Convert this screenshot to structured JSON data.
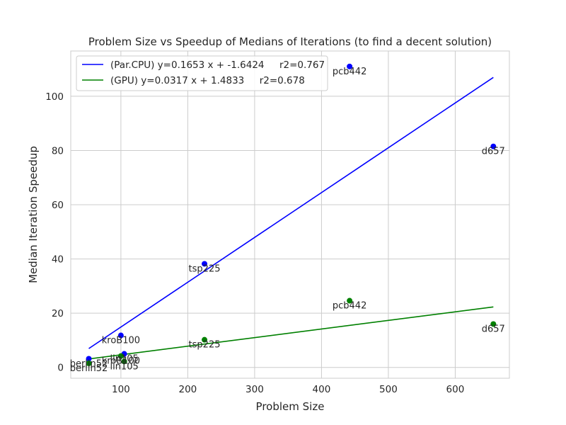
{
  "chart_data": {
    "type": "scatter",
    "title": "Problem Size vs Speedup of Medians of Iterations (to find a decent solution)",
    "xlabel": "Problem Size",
    "ylabel": "Median Iteration Speedup",
    "xlim": [
      25,
      681
    ],
    "ylim": [
      -4,
      116.7
    ],
    "xticks": [
      100,
      200,
      300,
      400,
      500,
      600
    ],
    "yticks": [
      0,
      20,
      40,
      60,
      80,
      100
    ],
    "grid": true,
    "legend_position": "upper-left",
    "series": [
      {
        "name": "(Par.CPU) y=0.1653 x + -1.6424     r2=0.767",
        "color": "#0000ff",
        "points": [
          {
            "label": "berlin52",
            "x": 52,
            "y": 3.2
          },
          {
            "label": "kroB100",
            "x": 100,
            "y": 11.8
          },
          {
            "label": "lin105",
            "x": 105,
            "y": 5.0
          },
          {
            "label": "tsp225",
            "x": 225,
            "y": 38.2
          },
          {
            "label": "pcb442",
            "x": 442,
            "y": 111.0
          },
          {
            "label": "d657",
            "x": 657,
            "y": 81.5
          }
        ],
        "fit": {
          "slope": 0.1653,
          "intercept": -1.6424,
          "x_range": [
            52,
            657
          ]
        }
      },
      {
        "name": "(GPU) y=0.0317 x + 1.4833     r2=0.678",
        "color": "#008000",
        "points": [
          {
            "label": "berlin52",
            "x": 52,
            "y": 1.5
          },
          {
            "label": "kroB100",
            "x": 100,
            "y": 4.2
          },
          {
            "label": "lin105",
            "x": 105,
            "y": 2.2
          },
          {
            "label": "tsp225",
            "x": 225,
            "y": 10.2
          },
          {
            "label": "pcb442",
            "x": 442,
            "y": 24.6
          },
          {
            "label": "d657",
            "x": 657,
            "y": 16.0
          }
        ],
        "fit": {
          "slope": 0.0317,
          "intercept": 1.4833,
          "x_range": [
            52,
            657
          ]
        }
      }
    ]
  }
}
